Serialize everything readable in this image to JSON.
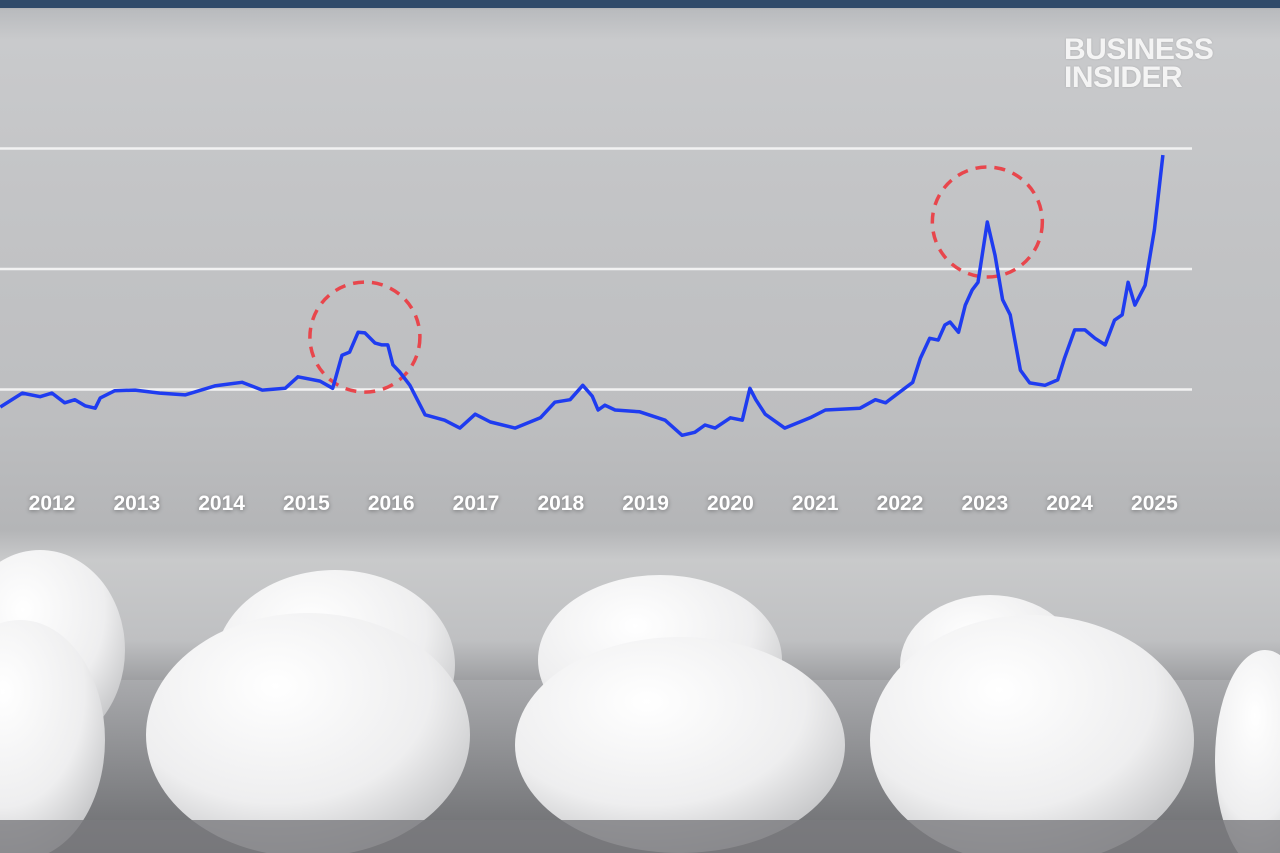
{
  "brand": {
    "line1": "BUSINESS",
    "line2": "INSIDER"
  },
  "colors": {
    "line": "#1f3cf0",
    "annotation": "#e8464c",
    "grid": "#f2f2f2",
    "tick_text": "#ffffff"
  },
  "chart_data": {
    "type": "line",
    "title": "",
    "xlabel": "",
    "ylabel": "",
    "x_tick_labels": [
      "2012",
      "2013",
      "2014",
      "2015",
      "2016",
      "2017",
      "2018",
      "2019",
      "2020",
      "2021",
      "2022",
      "2023",
      "2024",
      "2025"
    ],
    "xlim": [
      2011.39,
      2025.5
    ],
    "ylim": [
      0,
      6
    ],
    "grid_y_values": [
      2,
      4,
      6
    ],
    "grid": true,
    "y_tick_labels_shown": false,
    "series": [
      {
        "x": [
          2011.39,
          2011.65,
          2011.86,
          2012.0,
          2012.15,
          2012.27,
          2012.39,
          2012.51,
          2012.57,
          2012.74,
          2012.98,
          2013.27,
          2013.57,
          2013.92,
          2014.24,
          2014.48,
          2014.75,
          2014.9,
          2015.16,
          2015.31,
          2015.42,
          2015.51,
          2015.61,
          2015.69,
          2015.81,
          2015.89,
          2015.96,
          2016.02,
          2016.1,
          2016.22,
          2016.4,
          2016.63,
          2016.81,
          2016.99,
          2017.17,
          2017.46,
          2017.76,
          2017.93,
          2018.11,
          2018.26,
          2018.37,
          2018.44,
          2018.52,
          2018.64,
          2018.93,
          2019.23,
          2019.43,
          2019.58,
          2019.7,
          2019.82,
          2020.0,
          2020.14,
          2020.23,
          2020.3,
          2020.41,
          2020.64,
          2020.94,
          2021.12,
          2021.53,
          2021.71,
          2021.83,
          2022.0,
          2022.15,
          2022.24,
          2022.35,
          2022.45,
          2022.53,
          2022.59,
          2022.69,
          2022.77,
          2022.85,
          2022.92,
          2023.03,
          2023.12,
          2023.21,
          2023.3,
          2023.42,
          2023.53,
          2023.71,
          2023.86,
          2023.94,
          2024.06,
          2024.18,
          2024.3,
          2024.42,
          2024.53,
          2024.62,
          2024.69,
          2024.77,
          2024.89,
          2025.0,
          2025.1
        ],
        "values": [
          1.71,
          1.94,
          1.88,
          1.94,
          1.78,
          1.83,
          1.73,
          1.69,
          1.86,
          1.98,
          1.99,
          1.94,
          1.91,
          2.06,
          2.12,
          1.99,
          2.02,
          2.21,
          2.14,
          2.02,
          2.57,
          2.62,
          2.95,
          2.94,
          2.77,
          2.74,
          2.74,
          2.41,
          2.29,
          2.07,
          1.58,
          1.49,
          1.36,
          1.59,
          1.46,
          1.36,
          1.53,
          1.79,
          1.83,
          2.07,
          1.89,
          1.66,
          1.74,
          1.66,
          1.63,
          1.49,
          1.24,
          1.29,
          1.41,
          1.36,
          1.53,
          1.49,
          2.02,
          1.83,
          1.59,
          1.36,
          1.53,
          1.66,
          1.69,
          1.83,
          1.78,
          1.96,
          2.12,
          2.52,
          2.85,
          2.82,
          3.07,
          3.12,
          2.95,
          3.4,
          3.65,
          3.78,
          4.78,
          4.23,
          3.49,
          3.24,
          2.32,
          2.11,
          2.07,
          2.16,
          2.52,
          2.99,
          2.99,
          2.85,
          2.74,
          3.15,
          3.24,
          3.78,
          3.4,
          3.73,
          4.65,
          5.89
        ]
      }
    ],
    "annotations": [
      {
        "type": "dashed-circle",
        "x": 2015.69,
        "y": 2.87
      },
      {
        "type": "dashed-circle",
        "x": 2023.03,
        "y": 4.78
      }
    ]
  }
}
